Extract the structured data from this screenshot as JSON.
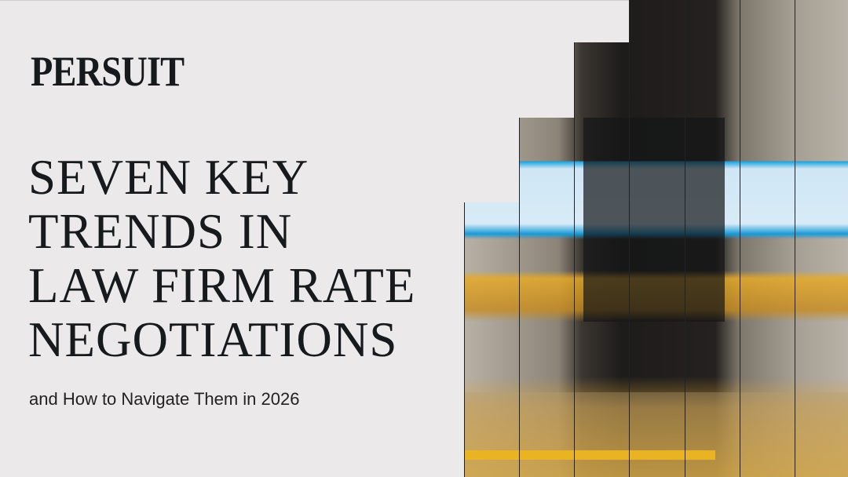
{
  "brand": {
    "logo_text": "PERSUIT"
  },
  "cover": {
    "title_lines": [
      "SEVEN KEY",
      "TRENDS IN",
      "LAW FIRM RATE",
      "NEGOTIATIONS"
    ],
    "subtitle": "and How to Navigate Them in 2026"
  },
  "colors": {
    "background": "#ebe9ea",
    "text": "#161a1d",
    "accent_blue": "#1aa3e0",
    "accent_yellow": "#e9b323"
  }
}
